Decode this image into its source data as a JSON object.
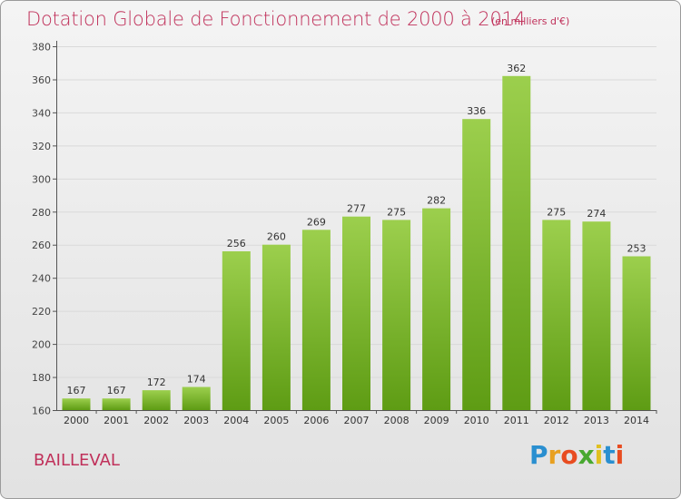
{
  "header": {
    "title": "Dotation Globale de Fonctionnement de 2000 à 2014",
    "subtitle": "(en milliers d'€)"
  },
  "footer": {
    "commune": "BAILLEVAL",
    "logo_text": "Proxiti",
    "logo_colors": [
      "#2a8fd0",
      "#e8a020",
      "#e84c20",
      "#48a830",
      "#e0c020",
      "#2a8fd0",
      "#e84c20"
    ]
  },
  "colors": {
    "title": "#c0305a",
    "bar_light": "#9ccf4d",
    "bar_dark": "#5e9c14",
    "axis": "#555555",
    "grid": "#d9d9d9"
  },
  "chart_data": {
    "type": "bar",
    "title": "Dotation Globale de Fonctionnement de 2000 à 2014",
    "subtitle": "(en milliers d'€)",
    "xlabel": "",
    "ylabel": "",
    "categories": [
      "2000",
      "2001",
      "2002",
      "2003",
      "2004",
      "2005",
      "2006",
      "2007",
      "2008",
      "2009",
      "2010",
      "2011",
      "2012",
      "2013",
      "2014"
    ],
    "values": [
      167,
      167,
      172,
      174,
      256,
      260,
      269,
      277,
      275,
      282,
      336,
      362,
      275,
      274,
      253
    ],
    "ylim": [
      160,
      380
    ],
    "yticks": [
      160,
      180,
      200,
      220,
      240,
      260,
      280,
      300,
      320,
      340,
      360,
      380
    ],
    "grid": true,
    "legend": "none"
  }
}
